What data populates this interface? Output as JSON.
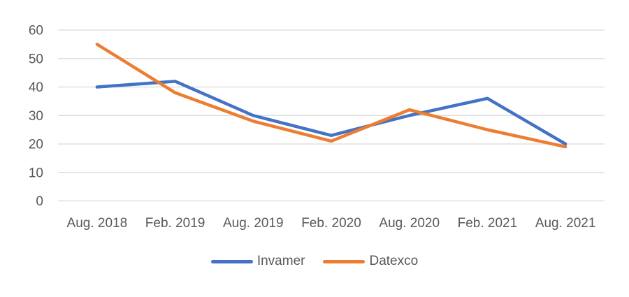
{
  "chart_data": {
    "type": "line",
    "title": "",
    "xlabel": "",
    "ylabel": "",
    "categories": [
      "Aug. 2018",
      "Feb. 2019",
      "Aug. 2019",
      "Feb. 2020",
      "Aug. 2020",
      "Feb. 2021",
      "Aug. 2021"
    ],
    "series": [
      {
        "name": "Invamer",
        "color": "#4472C4",
        "values": [
          40,
          42,
          30,
          23,
          30,
          36,
          20
        ]
      },
      {
        "name": "Datexco",
        "color": "#ED7D31",
        "values": [
          55,
          38,
          28,
          21,
          32,
          25,
          19
        ]
      }
    ],
    "ylim": [
      0,
      60
    ],
    "yticks": [
      0,
      10,
      20,
      30,
      40,
      50,
      60
    ],
    "grid": "horizontal-only",
    "gridline_color": "#D9D9D9",
    "axis_label_color": "#595959",
    "legend_position": "bottom"
  }
}
